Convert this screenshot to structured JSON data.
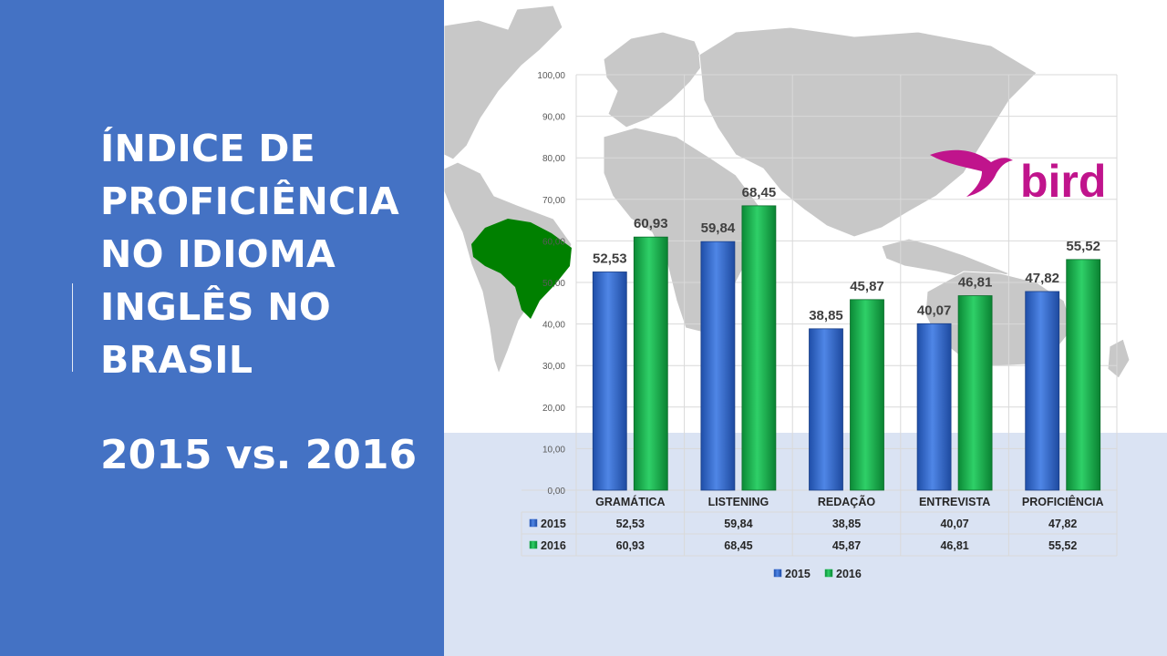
{
  "slide": {
    "title": "ÍNDICE DE PROFICIÊNCIA NO IDIOMA INGLÊS NO BRASIL",
    "subtitle": "2015 vs. 2016",
    "logo_text": "bird",
    "colors": {
      "left_panel": "#4472c4",
      "right_lower_bg": "#dae3f3",
      "map_land": "#c8c8c8",
      "brazil_highlight": "#008000",
      "logo": "#c0148c",
      "series_2015": "#2e62c9",
      "series_2016": "#12b24a"
    }
  },
  "chart_data": {
    "type": "bar",
    "categories": [
      "GRAMÁTICA",
      "LISTENING",
      "REDAÇÃO",
      "ENTREVISTA",
      "PROFICIÊNCIA"
    ],
    "series": [
      {
        "name": "2015",
        "values": [
          52.53,
          59.84,
          38.85,
          40.07,
          47.82
        ],
        "labels": [
          "52,53",
          "59,84",
          "38,85",
          "40,07",
          "47,82"
        ],
        "color": "#2e62c9"
      },
      {
        "name": "2016",
        "values": [
          60.93,
          68.45,
          45.87,
          46.81,
          55.52
        ],
        "labels": [
          "60,93",
          "68,45",
          "45,87",
          "46,81",
          "55,52"
        ],
        "color": "#12b24a"
      }
    ],
    "ylim": [
      0,
      100
    ],
    "yticks": [
      0,
      10,
      20,
      30,
      40,
      50,
      60,
      70,
      80,
      90,
      100
    ],
    "ytick_labels": [
      "0,00",
      "10,00",
      "20,00",
      "30,00",
      "40,00",
      "50,00",
      "60,00",
      "70,00",
      "80,00",
      "90,00",
      "100,00"
    ],
    "grid": true,
    "data_table": true,
    "legend_position": "bottom",
    "title": "",
    "xlabel": "",
    "ylabel": ""
  }
}
